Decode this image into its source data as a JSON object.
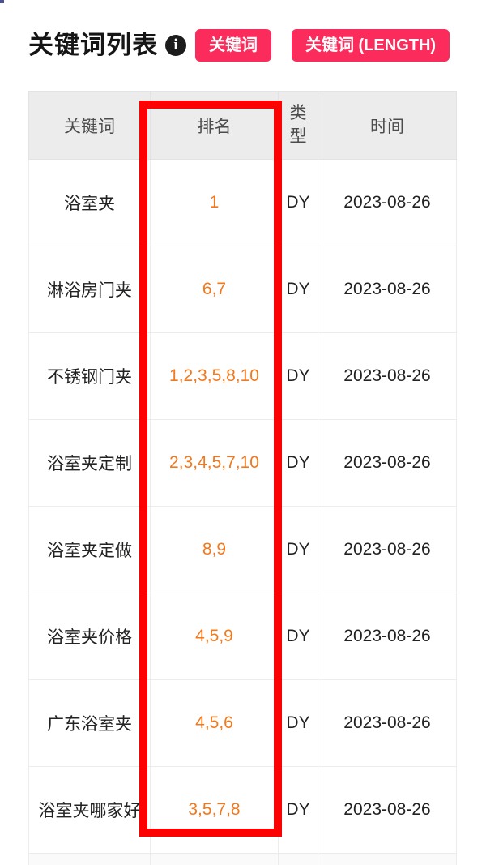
{
  "page": {
    "title": "关键词列表"
  },
  "icons": {
    "info": "i"
  },
  "buttons": {
    "keyword": {
      "label": "关键词"
    },
    "keyword_length": {
      "label": "关键词 (LENGTH)"
    }
  },
  "table": {
    "headers": [
      "关键词",
      "排名",
      "类型",
      "时间"
    ],
    "rows": [
      {
        "keyword": "浴室夹",
        "rank": "1",
        "type": "DY",
        "date": "2023-08-26"
      },
      {
        "keyword": "淋浴房门夹",
        "rank": "6,7",
        "type": "DY",
        "date": "2023-08-26"
      },
      {
        "keyword": "不锈钢门夹",
        "rank": "1,2,3,5,8,10",
        "type": "DY",
        "date": "2023-08-26"
      },
      {
        "keyword": "浴室夹定制",
        "rank": "2,3,4,5,7,10",
        "type": "DY",
        "date": "2023-08-26"
      },
      {
        "keyword": "浴室夹定做",
        "rank": "8,9",
        "type": "DY",
        "date": "2023-08-26"
      },
      {
        "keyword": "浴室夹价格",
        "rank": "4,5,9",
        "type": "DY",
        "date": "2023-08-26"
      },
      {
        "keyword": "广东浴室夹",
        "rank": "4,5,6",
        "type": "DY",
        "date": "2023-08-26"
      },
      {
        "keyword": "浴室夹哪家好",
        "rank": "3,5,7,8",
        "type": "DY",
        "date": "2023-08-26"
      }
    ]
  },
  "annotation": {
    "highlighted_column": "排名"
  },
  "colors": {
    "accent_pink": "#fb2c5b",
    "rank_orange": "#f2781c",
    "highlight_red": "#fd0202",
    "header_bg": "#ececec",
    "cell_border": "#ececec"
  }
}
